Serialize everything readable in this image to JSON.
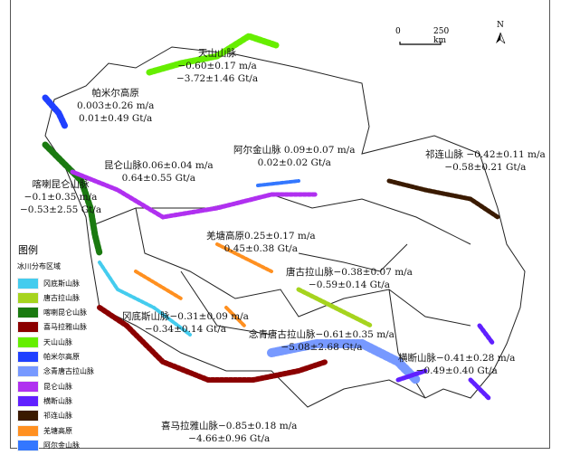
{
  "legend": {
    "title": "图例",
    "subtitle": "冰川分布区域",
    "items": [
      {
        "label": "冈底斯山脉",
        "color": "#44ccee"
      },
      {
        "label": "唐古拉山脉",
        "color": "#a6d41e"
      },
      {
        "label": "喀喇昆仑山脉",
        "color": "#1a7a10"
      },
      {
        "label": "喜马拉雅山脉",
        "color": "#8b0000"
      },
      {
        "label": "天山山脉",
        "color": "#66ee00"
      },
      {
        "label": "帕米尔高原",
        "color": "#2040ff"
      },
      {
        "label": "念青唐古拉山脉",
        "color": "#7799ff"
      },
      {
        "label": "昆仑山脉",
        "color": "#b030f0"
      },
      {
        "label": "横断山脉",
        "color": "#6020ff"
      },
      {
        "label": "祁连山脉",
        "color": "#3a1a00"
      },
      {
        "label": "羌塘高原",
        "color": "#ff9020"
      },
      {
        "label": "阿尔金山脉",
        "color": "#3377ff"
      }
    ]
  },
  "scale_bar": {
    "zero": "0",
    "end": "250 km"
  },
  "north_arrow": {
    "label": "N"
  },
  "regions": {
    "tianshan": {
      "name": "天山山脉",
      "rate": "−0.60±0.17 m/a",
      "mass": "−3.72±1.46 Gt/a"
    },
    "pamir": {
      "name": "帕米尔高原",
      "rate": "0.003±0.26 m/a",
      "mass": "0.01±0.49 Gt/a"
    },
    "kunlun": {
      "line1": "昆仑山脉0.06±0.04 m/a",
      "mass": "0.64±0.55 Gt/a"
    },
    "karakoram": {
      "name": "喀喇昆仑山脉",
      "rate": "−0.1±0.35 m/a",
      "mass": "−0.53±2.55 Gt/a"
    },
    "altun": {
      "line1": "阿尔金山脉 0.09±0.07 m/a",
      "mass": "0.02±0.02 Gt/a"
    },
    "qilian": {
      "line1": "祁连山脉 −0.42±0.11 m/a",
      "mass": "−0.58±0.21 Gt/a"
    },
    "qiangtang": {
      "line1": "羌塘高原0.25±0.17 m/a",
      "mass": "0.45±0.38 Gt/a"
    },
    "tanggula": {
      "line1": "唐古拉山脉−0.38±0.07 m/a",
      "mass": "−0.59±0.14 Gt/a"
    },
    "gangdise": {
      "line1": "冈底斯山脉−0.31±0.09 m/a",
      "mass": "−0.34±0.14 Gt/a"
    },
    "nyainqentanglha": {
      "line1": "念青唐古拉山脉−0.61±0.35 m/a",
      "mass": "−5.08±2.68 Gt/a"
    },
    "hengduan": {
      "line1": "横断山脉−0.41±0.28 m/a",
      "mass": "−0.49±0.40 Gt/a"
    },
    "himalaya": {
      "line1": "喜马拉雅山脉−0.85±0.18 m/a",
      "mass": "−4.66±0.96 Gt/a"
    }
  }
}
